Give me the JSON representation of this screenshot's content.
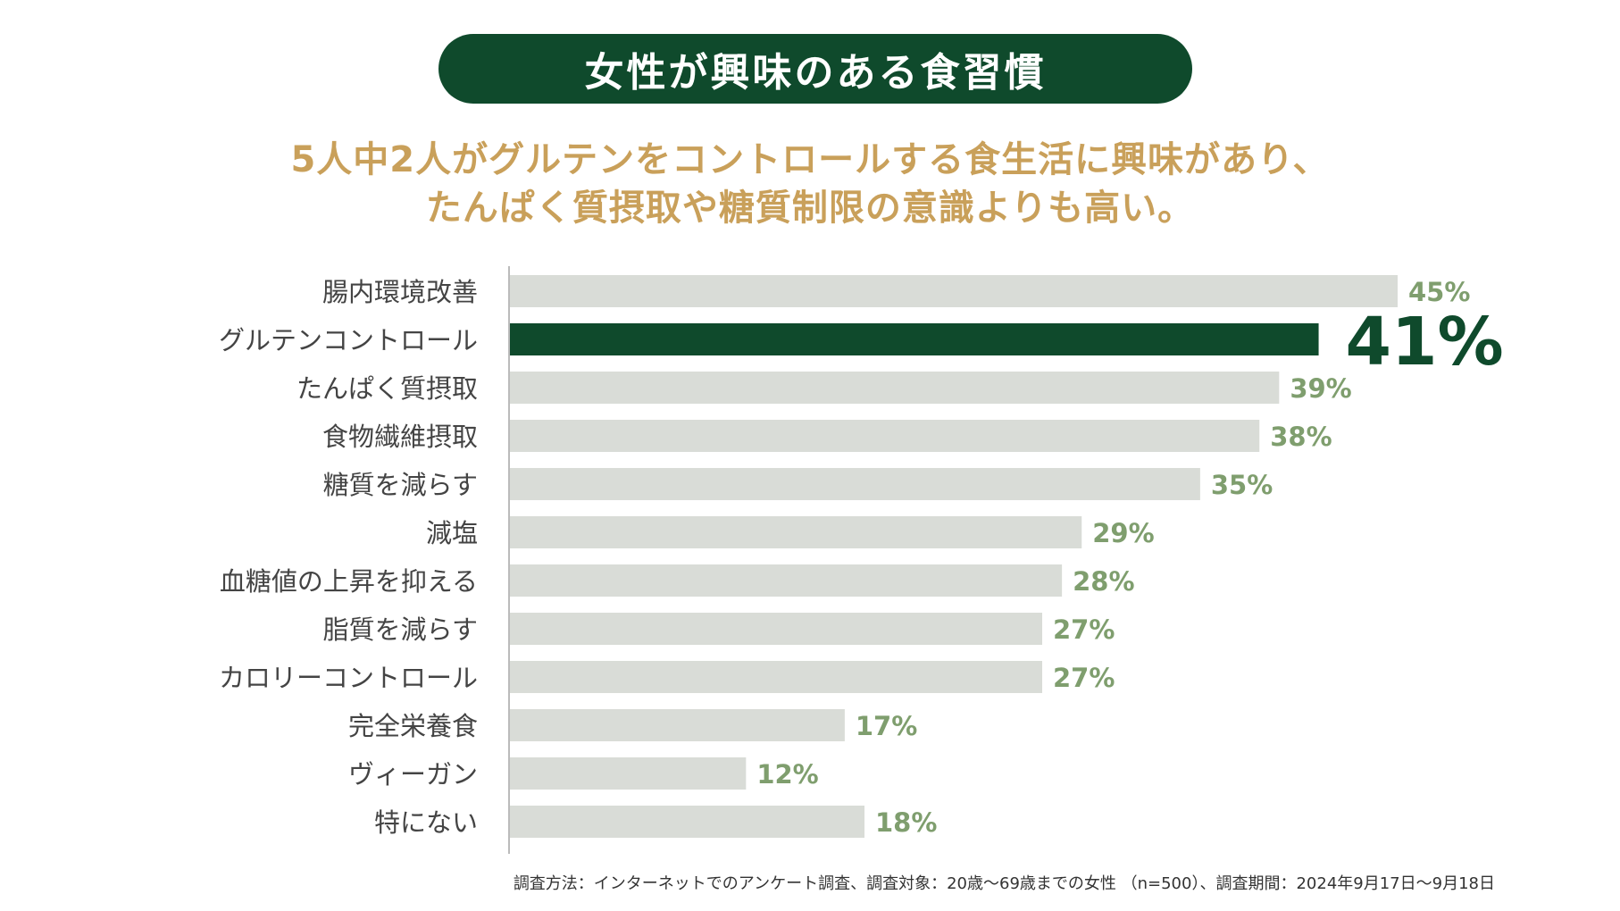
{
  "title": "女性が興味のある食習慣",
  "subtitle_lines": [
    "5人中2人がグルテンをコントロールする食生活に興味があり、",
    "たんぱく質摂取や糖質制限の意識よりも高い。"
  ],
  "footnote": "調査方法：インターネットでのアンケート調査、調査対象：20歳〜69歳までの女性 （n=500）、調査期間：2024年9月17日〜9月18日",
  "colors": {
    "title_bg": "#0f4a2c",
    "subtitle": "#c9a05a",
    "bar_default": "#d9dcd7",
    "bar_highlight": "#0f4a2c",
    "value_default": "#7f9e6e",
    "value_highlight": "#0f4a2c"
  },
  "chart_data": {
    "type": "bar",
    "orientation": "horizontal",
    "unit": "%",
    "categories": [
      "腸内環境改善",
      "グルテンコントロール",
      "たんぱく質摂取",
      "食物繊維摂取",
      "糖質を減らす",
      "減塩",
      "血糖値の上昇を抑える",
      "脂質を減らす",
      "カロリーコントロール",
      "完全栄養食",
      "ヴィーガン",
      "特にない"
    ],
    "values": [
      45,
      41,
      39,
      38,
      35,
      29,
      28,
      27,
      27,
      17,
      12,
      18
    ],
    "labels": [
      "45%",
      "41%",
      "39%",
      "38%",
      "35%",
      "29%",
      "28%",
      "27%",
      "27%",
      "17%",
      "12%",
      "18%"
    ],
    "highlight_index": 1,
    "xlim": [
      0,
      45
    ]
  }
}
